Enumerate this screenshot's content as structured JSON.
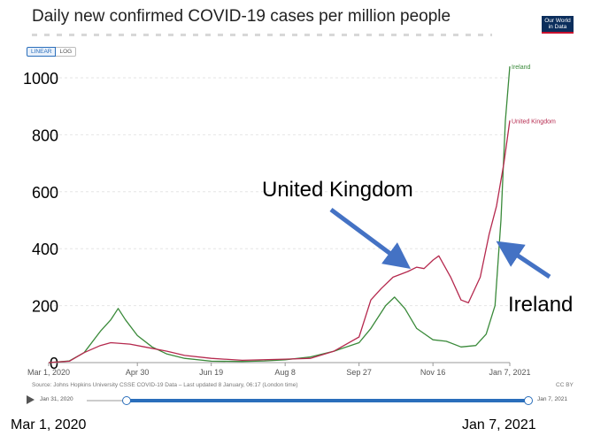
{
  "header": {
    "title": "Daily new confirmed COVID-19 cases per million people",
    "logo_text_1": "Our World",
    "logo_text_2": "in Data"
  },
  "controls": {
    "scale_linear": "LINEAR",
    "scale_log": "LOG",
    "active_scale": "LINEAR"
  },
  "footer": {
    "source": "Source: Johns Hopkins University CSSE COVID-19 Data – Last updated 8 January, 06:17 (London time)",
    "license": "CC BY"
  },
  "timeline": {
    "start_label": "Jan 31, 2020",
    "end_label": "Jan 7, 2021",
    "selected_start_fraction": 0.09,
    "selected_end_fraction": 1.0
  },
  "date_range": {
    "start": "Mar 1, 2020",
    "end": "Jan 7, 2021"
  },
  "colors": {
    "ireland": "#3a8a3a",
    "uk": "#b5294e",
    "arrow": "#4472c4",
    "timeline": "#2a6ebb"
  },
  "chart_data": {
    "type": "line",
    "title": "Daily new confirmed COVID-19 cases per million people",
    "ylim": [
      0,
      1000
    ],
    "y_ticks": [
      0,
      200,
      400,
      600,
      800,
      1000
    ],
    "y_tick_labels": [
      "0",
      "200",
      "400",
      "600",
      "800",
      "1000"
    ],
    "x_domain": [
      "2020-03-01",
      "2021-01-07"
    ],
    "x_ticks": [
      "2020-03-01",
      "2020-04-30",
      "2020-06-19",
      "2020-08-08",
      "2020-09-27",
      "2020-11-16",
      "2021-01-07"
    ],
    "x_tick_labels": [
      "Mar 1, 2020",
      "Apr 30",
      "Jun 19",
      "Aug 8",
      "Sep 27",
      "Nov 16",
      "Jan 7, 2021"
    ],
    "grid": true,
    "series": [
      {
        "name": "Ireland",
        "color": "#3a8a3a",
        "points": [
          [
            "2020-03-01",
            0
          ],
          [
            "2020-03-15",
            6
          ],
          [
            "2020-03-25",
            35
          ],
          [
            "2020-04-05",
            110
          ],
          [
            "2020-04-12",
            150
          ],
          [
            "2020-04-17",
            190
          ],
          [
            "2020-04-22",
            150
          ],
          [
            "2020-04-30",
            95
          ],
          [
            "2020-05-10",
            55
          ],
          [
            "2020-05-20",
            30
          ],
          [
            "2020-06-01",
            15
          ],
          [
            "2020-06-19",
            5
          ],
          [
            "2020-07-10",
            4
          ],
          [
            "2020-07-25",
            6
          ],
          [
            "2020-08-08",
            10
          ],
          [
            "2020-08-25",
            20
          ],
          [
            "2020-09-10",
            40
          ],
          [
            "2020-09-27",
            70
          ],
          [
            "2020-10-05",
            120
          ],
          [
            "2020-10-15",
            200
          ],
          [
            "2020-10-21",
            230
          ],
          [
            "2020-10-28",
            190
          ],
          [
            "2020-11-05",
            120
          ],
          [
            "2020-11-16",
            80
          ],
          [
            "2020-11-25",
            75
          ],
          [
            "2020-12-05",
            55
          ],
          [
            "2020-12-15",
            60
          ],
          [
            "2020-12-22",
            100
          ],
          [
            "2020-12-28",
            200
          ],
          [
            "2021-01-01",
            500
          ],
          [
            "2021-01-04",
            850
          ],
          [
            "2021-01-07",
            1040
          ]
        ],
        "end_label": "Ireland"
      },
      {
        "name": "United Kingdom",
        "color": "#b5294e",
        "points": [
          [
            "2020-03-01",
            0
          ],
          [
            "2020-03-15",
            5
          ],
          [
            "2020-03-25",
            35
          ],
          [
            "2020-04-05",
            60
          ],
          [
            "2020-04-12",
            70
          ],
          [
            "2020-04-25",
            65
          ],
          [
            "2020-05-05",
            55
          ],
          [
            "2020-05-20",
            40
          ],
          [
            "2020-06-01",
            25
          ],
          [
            "2020-06-19",
            15
          ],
          [
            "2020-07-10",
            8
          ],
          [
            "2020-08-08",
            12
          ],
          [
            "2020-08-25",
            15
          ],
          [
            "2020-09-10",
            40
          ],
          [
            "2020-09-27",
            90
          ],
          [
            "2020-10-05",
            220
          ],
          [
            "2020-10-12",
            260
          ],
          [
            "2020-10-20",
            300
          ],
          [
            "2020-10-30",
            320
          ],
          [
            "2020-11-05",
            335
          ],
          [
            "2020-11-10",
            330
          ],
          [
            "2020-11-16",
            360
          ],
          [
            "2020-11-20",
            375
          ],
          [
            "2020-11-28",
            300
          ],
          [
            "2020-12-05",
            220
          ],
          [
            "2020-12-10",
            210
          ],
          [
            "2020-12-18",
            300
          ],
          [
            "2020-12-24",
            450
          ],
          [
            "2020-12-29",
            550
          ],
          [
            "2021-01-03",
            700
          ],
          [
            "2021-01-07",
            850
          ]
        ],
        "end_label": "United Kingdom"
      }
    ],
    "annotations": [
      {
        "text": "United Kingdom",
        "points_to": "United Kingdom"
      },
      {
        "text": "Ireland",
        "points_to": "Ireland"
      }
    ]
  }
}
